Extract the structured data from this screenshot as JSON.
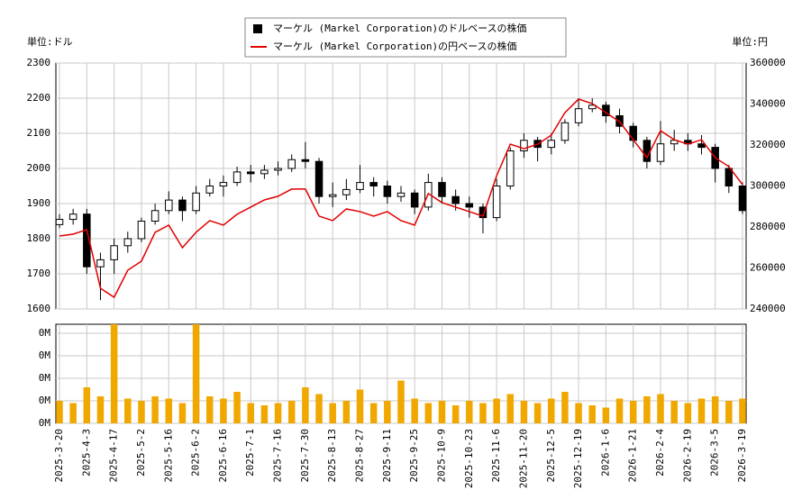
{
  "chart_data": {
    "type": "candlestick",
    "x": [
      "2025-3-20",
      "2025-3-27",
      "2025-4-3",
      "2025-4-10",
      "2025-4-17",
      "2025-4-25",
      "2025-5-2",
      "2025-5-9",
      "2025-5-16",
      "2025-5-23",
      "2025-6-2",
      "2025-6-9",
      "2025-6-16",
      "2025-6-23",
      "2025-7-1",
      "2025-7-9",
      "2025-7-16",
      "2025-7-23",
      "2025-7-30",
      "2025-8-6",
      "2025-8-13",
      "2025-8-20",
      "2025-8-27",
      "2025-9-4",
      "2025-9-11",
      "2025-9-18",
      "2025-9-25",
      "2025-10-2",
      "2025-10-9",
      "2025-10-16",
      "2025-10-23",
      "2025-10-30",
      "2025-11-6",
      "2025-11-13",
      "2025-11-20",
      "2025-11-28",
      "2025-12-5",
      "2025-12-12",
      "2025-12-19",
      "2025-12-29",
      "2026-1-6",
      "2026-1-13",
      "2026-1-21",
      "2026-1-28",
      "2026-2-4",
      "2026-2-11",
      "2026-2-19",
      "2026-2-26",
      "2026-3-5",
      "2026-3-12",
      "2026-3-19"
    ],
    "xticks": [
      "2025-3-20",
      "2025-4-3",
      "2025-4-17",
      "2025-5-2",
      "2025-5-16",
      "2025-6-2",
      "2025-6-16",
      "2025-7-1",
      "2025-7-16",
      "2025-7-30",
      "2025-8-13",
      "2025-8-27",
      "2025-9-11",
      "2025-9-25",
      "2025-10-9",
      "2025-10-23",
      "2025-11-6",
      "2025-11-20",
      "2025-12-5",
      "2025-12-19",
      "2026-1-6",
      "2026-1-21",
      "2026-2-4",
      "2026-2-19",
      "2026-3-5",
      "2026-3-19"
    ],
    "y_unit_label": "単位:ドル",
    "y2_unit_label": "単位:円",
    "ylim": [
      1600,
      2300
    ],
    "yticks": [
      1600,
      1700,
      1800,
      1900,
      2000,
      2100,
      2200,
      2300
    ],
    "y2lim": [
      240000,
      360000
    ],
    "y2ticks": [
      240000,
      260000,
      280000,
      300000,
      320000,
      340000,
      360000
    ],
    "grid": true,
    "legend": "top",
    "series": [
      {
        "name": "マーケル (Markel Corporation)のドルベースの株価",
        "color": "#000000",
        "open": [
          1840,
          1855,
          1870,
          1720,
          1740,
          1780,
          1800,
          1850,
          1880,
          1910,
          1880,
          1930,
          1950,
          1960,
          1990,
          1985,
          1995,
          2000,
          2025,
          2020,
          1920,
          1925,
          1940,
          1960,
          1950,
          1920,
          1930,
          1890,
          1960,
          1920,
          1900,
          1890,
          1860,
          1950,
          2050,
          2080,
          2060,
          2080,
          2130,
          2170,
          2180,
          2150,
          2120,
          2080,
          2020,
          2070,
          2080,
          2070,
          2060,
          2000,
          1950
        ],
        "high": [
          1870,
          1885,
          1885,
          1760,
          1800,
          1820,
          1860,
          1900,
          1935,
          1920,
          1950,
          1970,
          1980,
          2005,
          2010,
          2010,
          2020,
          2040,
          2075,
          2030,
          1960,
          1970,
          2010,
          1975,
          1965,
          1950,
          1940,
          1985,
          1975,
          1940,
          1920,
          1900,
          1970,
          2060,
          2100,
          2090,
          2100,
          2140,
          2200,
          2200,
          2190,
          2170,
          2130,
          2090,
          2135,
          2110,
          2100,
          2095,
          2070,
          2010,
          1960
        ],
        "low": [
          1830,
          1840,
          1700,
          1625,
          1700,
          1760,
          1790,
          1840,
          1870,
          1850,
          1870,
          1920,
          1920,
          1950,
          1960,
          1970,
          1980,
          1990,
          2000,
          1900,
          1890,
          1910,
          1930,
          1920,
          1900,
          1905,
          1870,
          1880,
          1900,
          1880,
          1860,
          1815,
          1850,
          1940,
          2030,
          2020,
          2040,
          2070,
          2120,
          2160,
          2130,
          2100,
          2060,
          2000,
          2010,
          2050,
          2050,
          2040,
          1960,
          1930,
          1870
        ],
        "close": [
          1855,
          1870,
          1720,
          1740,
          1780,
          1800,
          1850,
          1880,
          1910,
          1880,
          1930,
          1950,
          1960,
          1990,
          1985,
          1995,
          2000,
          2025,
          2020,
          1920,
          1925,
          1940,
          1960,
          1950,
          1920,
          1930,
          1890,
          1960,
          1920,
          1900,
          1890,
          1860,
          1950,
          2050,
          2080,
          2060,
          2080,
          2130,
          2170,
          2180,
          2150,
          2120,
          2080,
          2020,
          2070,
          2080,
          2070,
          2060,
          2000,
          1950,
          1880
        ]
      },
      {
        "name": "マーケル (Markel Corporation)の円ベースの株価",
        "color": "#e00000",
        "axis": "y2",
        "values": [
          275600,
          276500,
          278700,
          250100,
          245700,
          258900,
          263300,
          277400,
          280900,
          269900,
          277400,
          283100,
          280900,
          286200,
          289700,
          293200,
          295000,
          298500,
          298500,
          285300,
          283100,
          288800,
          287500,
          285300,
          287500,
          283100,
          280900,
          296300,
          291900,
          289700,
          287500,
          285300,
          305000,
          320400,
          318200,
          320400,
          324800,
          335800,
          342400,
          340200,
          335800,
          331400,
          322600,
          313800,
          327000,
          322600,
          320400,
          322600,
          313800,
          309500,
          300700
        ]
      }
    ],
    "volume": {
      "color": "#f0a800",
      "values": [
        100000,
        90000,
        160000,
        120000,
        440000,
        110000,
        100000,
        120000,
        110000,
        90000,
        440000,
        120000,
        110000,
        140000,
        90000,
        80000,
        90000,
        100000,
        160000,
        130000,
        90000,
        100000,
        150000,
        90000,
        100000,
        190000,
        110000,
        90000,
        100000,
        80000,
        100000,
        90000,
        110000,
        130000,
        100000,
        90000,
        110000,
        140000,
        90000,
        80000,
        70000,
        110000,
        100000,
        120000,
        130000,
        100000,
        90000,
        110000,
        120000,
        100000,
        110000
      ],
      "ylim": [
        0,
        440000
      ],
      "yticks": [
        {
          "value": 0,
          "label": "0M"
        },
        {
          "value": 100000,
          "label": "0M"
        },
        {
          "value": 200000,
          "label": "0M"
        },
        {
          "value": 300000,
          "label": "0M"
        },
        {
          "value": 400000,
          "label": "0M"
        }
      ]
    }
  }
}
